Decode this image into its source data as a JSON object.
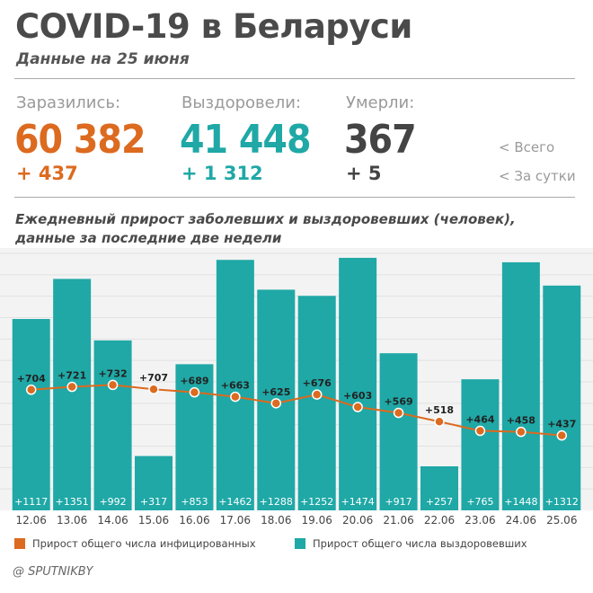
{
  "header": {
    "title": "COVID-19 в Беларуси",
    "subtitle": "Данные на 25 июня"
  },
  "stats": {
    "infected": {
      "label": "Заразились:",
      "value": "60 382",
      "delta": "+ 437",
      "color": "#dc6a1f"
    },
    "recovered": {
      "label": "Выздоровели:",
      "value": "41 448",
      "delta": "+ 1 312",
      "color": "#1fa8a6"
    },
    "deaths": {
      "label": "Умерли:",
      "value": "367",
      "delta": "+ 5",
      "color": "#444444"
    }
  },
  "side_notes": {
    "total": "<  Всего",
    "daily": "<  За сутки"
  },
  "chart_title_line1": "Ежедневный прирост заболевших и выздоровевших (человек),",
  "chart_title_line2": "данные за последние две недели",
  "legend": {
    "infected": "Прирост общего числа инфицированных",
    "recovered": "Прирост общего числа выздоровевших"
  },
  "credit": "@ SPUTNIKBY",
  "chart_data": {
    "type": "bar",
    "categories": [
      "12.06",
      "13.06",
      "14.06",
      "15.06",
      "16.06",
      "17.06",
      "18.06",
      "19.06",
      "20.06",
      "21.06",
      "22.06",
      "23.06",
      "24.06",
      "25.06"
    ],
    "ylim": [
      0,
      1500
    ],
    "grid": true,
    "series": [
      {
        "name": "Прирост общего числа выздоровевших",
        "type": "bar",
        "color": "#1fa8a6",
        "values": [
          1117,
          1351,
          992,
          317,
          853,
          1462,
          1288,
          1252,
          1474,
          917,
          257,
          765,
          1448,
          1312
        ],
        "labels": [
          "+1117",
          "+1351",
          "+992",
          "+317",
          "+853",
          "+1462",
          "+1288",
          "+1252",
          "+1474",
          "+917",
          "+257",
          "+765",
          "+1448",
          "+1312"
        ]
      },
      {
        "name": "Прирост общего числа инфицированных",
        "type": "line",
        "color": "#dc6a1f",
        "values": [
          704,
          721,
          732,
          707,
          689,
          663,
          625,
          676,
          603,
          569,
          518,
          464,
          458,
          437
        ],
        "labels": [
          "+704",
          "+721",
          "+732",
          "+707",
          "+689",
          "+663",
          "+625",
          "+676",
          "+603",
          "+569",
          "+518",
          "+464",
          "+458",
          "+437"
        ]
      }
    ]
  }
}
